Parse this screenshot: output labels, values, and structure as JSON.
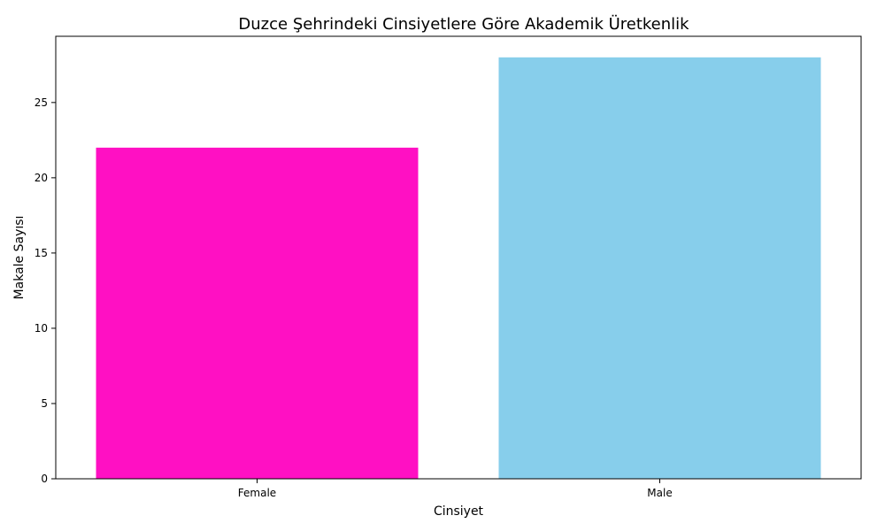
{
  "chart_data": {
    "type": "bar",
    "title": "Duzce Şehrindeki Cinsiyetlere Göre Akademik Üretkenlik",
    "xlabel": "Cinsiyet",
    "ylabel": "Makale Sayısı",
    "categories": [
      "Female",
      "Male"
    ],
    "values": [
      22,
      28
    ],
    "colors": [
      "#ff10c3",
      "#87ceeb"
    ],
    "ylim": [
      0,
      29.4
    ],
    "yticks": [
      0,
      5,
      10,
      15,
      20,
      25
    ],
    "grid": false,
    "legend": "none"
  }
}
